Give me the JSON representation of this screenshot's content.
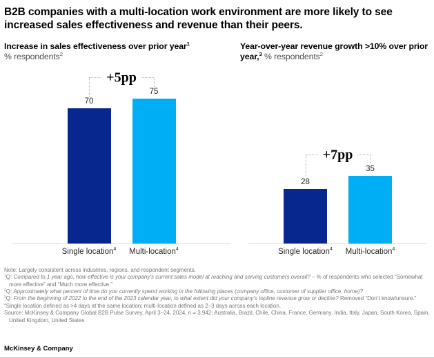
{
  "exhibit": {
    "title": "B2B companies with a multi-location work environment are more likely to see increased sales effectiveness and revenue than their peers.",
    "footer_brand": "McKinsey & Company"
  },
  "colors": {
    "navy": "#07278f",
    "cyan": "#00aef5",
    "baseline": "#d9d9d9",
    "bracket_dotted": "#b0b0b0"
  },
  "chart_data": [
    {
      "type": "bar",
      "title": "Increase in sales effectiveness over prior year",
      "title_sup": "1",
      "unit": "% respondents",
      "unit_sup": "2",
      "unit_inline": false,
      "annotation": "+5pp",
      "categories": [
        "Single location",
        "Multi-location"
      ],
      "values": [
        70,
        75
      ],
      "ylim": [
        0,
        80
      ],
      "legend": "none",
      "grid": "off",
      "bars": [
        {
          "label": "Single location",
          "label_sup": "4",
          "value": 70,
          "color": "#07278f"
        },
        {
          "label": "Multi-location",
          "label_sup": "4",
          "value": 75,
          "color": "#00aef5"
        }
      ]
    },
    {
      "type": "bar",
      "title": "Year-over-year revenue growth >10% over prior year,",
      "title_sup": "3",
      "unit": "% respondents",
      "unit_sup": "2",
      "unit_inline": true,
      "annotation": "+7pp",
      "categories": [
        "Single location",
        "Multi-location"
      ],
      "values": [
        28,
        35
      ],
      "ylim": [
        0,
        80
      ],
      "legend": "none",
      "grid": "off",
      "bars": [
        {
          "label": "Single location",
          "label_sup": "4",
          "value": 28,
          "color": "#07278f"
        },
        {
          "label": "Multi-location",
          "label_sup": "4",
          "value": 35,
          "color": "#00aef5"
        }
      ]
    }
  ],
  "footnotes": [
    {
      "segments": [
        {
          "t": "Note: Largely consistent across industries, regions, and respondent segments.",
          "i": false
        }
      ]
    },
    {
      "sup": "1",
      "segments": [
        {
          "t": "Q: ",
          "i": false
        },
        {
          "t": "Compared to 1 year ago, how effective is your company’s current sales model at reaching and serving customers overall?",
          "i": true
        },
        {
          "t": " – % of respondents who selected “Somewhat more effective” and “Much more effective.”",
          "i": false
        }
      ]
    },
    {
      "sup": "2",
      "segments": [
        {
          "t": "Q: ",
          "i": false
        },
        {
          "t": "Approximately what percent of time do you currently spend working in the following places (company office, customer of supplier office, home)?",
          "i": true
        }
      ]
    },
    {
      "sup": "3",
      "segments": [
        {
          "t": "Q: ",
          "i": false
        },
        {
          "t": "From the beginning of 2022 to the end of the 2023 calendar year, to what extent did your company’s topline revenue grow or decline?",
          "i": true
        },
        {
          "t": " Removed “Don’t know/unsure.”",
          "i": false
        }
      ]
    },
    {
      "sup": "4",
      "segments": [
        {
          "t": "Single location defined as >4 days at the same location; multi-location defined as 2–3 days across each location.",
          "i": false
        }
      ]
    },
    {
      "segments": [
        {
          "t": "Source: McKinsey & Company Global B2B Pulse Survey, April 3–24, 2024, n = 3,942; Australia, Brazil, Chile, China, France, Germany, India, Italy, Japan, South Korea, Spain, United Kingdom, United States",
          "i": false
        }
      ]
    }
  ]
}
